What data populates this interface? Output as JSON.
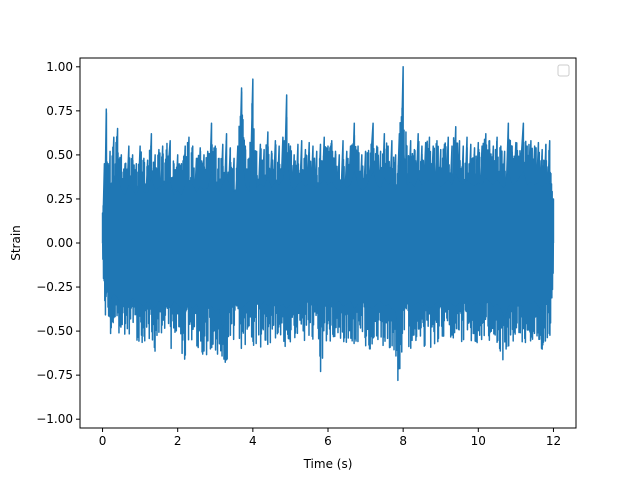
{
  "chart_data": {
    "type": "line",
    "title": "",
    "xlabel": "Time (s)",
    "ylabel": "Strain",
    "xlim": [
      -0.6,
      12.6
    ],
    "ylim": [
      -1.05,
      1.05
    ],
    "xticks": [
      0,
      2,
      4,
      6,
      8,
      10,
      12
    ],
    "xtick_labels": [
      "0",
      "2",
      "4",
      "6",
      "8",
      "10",
      "12"
    ],
    "yticks": [
      -1.0,
      -0.75,
      -0.5,
      -0.25,
      0.0,
      0.25,
      0.5,
      0.75,
      1.0
    ],
    "ytick_labels": [
      "−1.00",
      "−0.75",
      "−0.50",
      "−0.25",
      "0.00",
      "0.25",
      "0.50",
      "0.75",
      "1.00"
    ],
    "grid": false,
    "legend": {
      "placement": "top-right",
      "entries": []
    },
    "series": [
      {
        "color": "#1f77b4",
        "x_start": 0,
        "x_end": 12,
        "envelope_max": [
          [
            0.0,
            0.17
          ],
          [
            0.05,
            0.45
          ],
          [
            0.1,
            0.76
          ],
          [
            0.15,
            0.45
          ],
          [
            0.2,
            0.52
          ],
          [
            0.3,
            0.6
          ],
          [
            0.4,
            0.65
          ],
          [
            0.5,
            0.5
          ],
          [
            0.6,
            0.45
          ],
          [
            0.7,
            0.55
          ],
          [
            0.8,
            0.5
          ],
          [
            0.9,
            0.45
          ],
          [
            1.0,
            0.55
          ],
          [
            1.1,
            0.48
          ],
          [
            1.2,
            0.47
          ],
          [
            1.3,
            0.62
          ],
          [
            1.4,
            0.5
          ],
          [
            1.5,
            0.53
          ],
          [
            1.6,
            0.55
          ],
          [
            1.8,
            0.58
          ],
          [
            1.9,
            0.45
          ],
          [
            2.0,
            0.5
          ],
          [
            2.1,
            0.45
          ],
          [
            2.2,
            0.55
          ],
          [
            2.3,
            0.6
          ],
          [
            2.4,
            0.55
          ],
          [
            2.5,
            0.48
          ],
          [
            2.6,
            0.54
          ],
          [
            2.7,
            0.5
          ],
          [
            2.8,
            0.52
          ],
          [
            2.9,
            0.68
          ],
          [
            3.0,
            0.55
          ],
          [
            3.1,
            0.48
          ],
          [
            3.2,
            0.56
          ],
          [
            3.3,
            0.62
          ],
          [
            3.4,
            0.54
          ],
          [
            3.5,
            0.48
          ],
          [
            3.6,
            0.55
          ],
          [
            3.7,
            0.88
          ],
          [
            3.8,
            0.55
          ],
          [
            3.9,
            0.48
          ],
          [
            4.0,
            0.93
          ],
          [
            4.1,
            0.52
          ],
          [
            4.2,
            0.56
          ],
          [
            4.3,
            0.53
          ],
          [
            4.4,
            0.63
          ],
          [
            4.5,
            0.52
          ],
          [
            4.6,
            0.58
          ],
          [
            4.7,
            0.55
          ],
          [
            4.8,
            0.6
          ],
          [
            4.9,
            0.84
          ],
          [
            5.0,
            0.55
          ],
          [
            5.1,
            0.5
          ],
          [
            5.2,
            0.56
          ],
          [
            5.3,
            0.58
          ],
          [
            5.4,
            0.53
          ],
          [
            5.5,
            0.57
          ],
          [
            5.6,
            0.55
          ],
          [
            5.7,
            0.52
          ],
          [
            5.8,
            0.56
          ],
          [
            5.9,
            0.6
          ],
          [
            6.0,
            0.55
          ],
          [
            6.1,
            0.58
          ],
          [
            6.2,
            0.52
          ],
          [
            6.3,
            0.5
          ],
          [
            6.4,
            0.58
          ],
          [
            6.5,
            0.52
          ],
          [
            6.6,
            0.55
          ],
          [
            6.7,
            0.68
          ],
          [
            6.8,
            0.55
          ],
          [
            6.9,
            0.5
          ],
          [
            7.0,
            0.52
          ],
          [
            7.2,
            0.68
          ],
          [
            7.3,
            0.55
          ],
          [
            7.4,
            0.52
          ],
          [
            7.5,
            0.62
          ],
          [
            7.6,
            0.55
          ],
          [
            7.7,
            0.58
          ],
          [
            7.8,
            0.5
          ],
          [
            7.9,
            0.62
          ],
          [
            8.0,
            1.0
          ],
          [
            8.1,
            0.55
          ],
          [
            8.2,
            0.58
          ],
          [
            8.3,
            0.53
          ],
          [
            8.4,
            0.62
          ],
          [
            8.5,
            0.55
          ],
          [
            8.6,
            0.57
          ],
          [
            8.7,
            0.6
          ],
          [
            8.8,
            0.55
          ],
          [
            8.9,
            0.58
          ],
          [
            9.0,
            0.53
          ],
          [
            9.1,
            0.56
          ],
          [
            9.2,
            0.6
          ],
          [
            9.3,
            0.55
          ],
          [
            9.4,
            0.66
          ],
          [
            9.5,
            0.58
          ],
          [
            9.6,
            0.55
          ],
          [
            9.7,
            0.6
          ],
          [
            9.8,
            0.56
          ],
          [
            9.9,
            0.54
          ],
          [
            10.0,
            0.57
          ],
          [
            10.1,
            0.55
          ],
          [
            10.2,
            0.62
          ],
          [
            10.3,
            0.58
          ],
          [
            10.4,
            0.55
          ],
          [
            10.5,
            0.6
          ],
          [
            10.6,
            0.55
          ],
          [
            10.7,
            0.52
          ],
          [
            10.8,
            0.68
          ],
          [
            10.9,
            0.55
          ],
          [
            11.0,
            0.57
          ],
          [
            11.2,
            0.68
          ],
          [
            11.3,
            0.55
          ],
          [
            11.4,
            0.58
          ],
          [
            11.5,
            0.55
          ],
          [
            11.6,
            0.57
          ],
          [
            11.7,
            0.53
          ],
          [
            11.8,
            0.56
          ],
          [
            11.9,
            0.58
          ],
          [
            12.0,
            0.25
          ]
        ],
        "envelope_min": [
          [
            0.0,
            -0.1
          ],
          [
            0.05,
            -0.3
          ],
          [
            0.1,
            -0.5
          ],
          [
            0.15,
            -0.42
          ],
          [
            0.2,
            -0.55
          ],
          [
            0.3,
            -0.48
          ],
          [
            0.4,
            -0.52
          ],
          [
            0.5,
            -0.6
          ],
          [
            0.6,
            -0.55
          ],
          [
            0.7,
            -0.58
          ],
          [
            0.8,
            -0.52
          ],
          [
            0.9,
            -0.55
          ],
          [
            1.0,
            -0.57
          ],
          [
            1.1,
            -0.6
          ],
          [
            1.2,
            -0.55
          ],
          [
            1.3,
            -0.58
          ],
          [
            1.4,
            -0.62
          ],
          [
            1.5,
            -0.55
          ],
          [
            1.6,
            -0.58
          ],
          [
            1.8,
            -0.62
          ],
          [
            1.9,
            -0.55
          ],
          [
            2.0,
            -0.58
          ],
          [
            2.1,
            -0.62
          ],
          [
            2.2,
            -0.68
          ],
          [
            2.3,
            -0.58
          ],
          [
            2.4,
            -0.62
          ],
          [
            2.5,
            -0.58
          ],
          [
            2.6,
            -0.65
          ],
          [
            2.7,
            -0.72
          ],
          [
            2.8,
            -0.62
          ],
          [
            2.9,
            -0.6
          ],
          [
            3.0,
            -0.65
          ],
          [
            3.1,
            -0.62
          ],
          [
            3.2,
            -0.82
          ],
          [
            3.3,
            -0.68
          ],
          [
            3.4,
            -0.62
          ],
          [
            3.5,
            -0.58
          ],
          [
            3.6,
            -0.6
          ],
          [
            3.7,
            -0.62
          ],
          [
            3.8,
            -0.58
          ],
          [
            3.9,
            -0.55
          ],
          [
            4.0,
            -0.62
          ],
          [
            4.1,
            -0.58
          ],
          [
            4.2,
            -0.6
          ],
          [
            4.3,
            -0.55
          ],
          [
            4.4,
            -0.6
          ],
          [
            4.5,
            -0.55
          ],
          [
            4.6,
            -0.58
          ],
          [
            4.7,
            -0.6
          ],
          [
            4.8,
            -0.58
          ],
          [
            4.9,
            -0.62
          ],
          [
            5.0,
            -0.58
          ],
          [
            5.1,
            -0.55
          ],
          [
            5.2,
            -0.58
          ],
          [
            5.3,
            -0.6
          ],
          [
            5.4,
            -0.55
          ],
          [
            5.5,
            -0.58
          ],
          [
            5.6,
            -0.6
          ],
          [
            5.7,
            -0.56
          ],
          [
            5.8,
            -0.8
          ],
          [
            5.9,
            -0.58
          ],
          [
            6.0,
            -0.6
          ],
          [
            6.1,
            -0.56
          ],
          [
            6.2,
            -0.58
          ],
          [
            6.3,
            -0.55
          ],
          [
            6.4,
            -0.6
          ],
          [
            6.5,
            -0.58
          ],
          [
            6.6,
            -0.55
          ],
          [
            6.7,
            -0.62
          ],
          [
            6.8,
            -0.58
          ],
          [
            6.9,
            -0.55
          ],
          [
            7.0,
            -0.6
          ],
          [
            7.2,
            -0.62
          ],
          [
            7.3,
            -0.58
          ],
          [
            7.4,
            -0.55
          ],
          [
            7.5,
            -0.6
          ],
          [
            7.6,
            -0.58
          ],
          [
            7.7,
            -0.62
          ],
          [
            7.8,
            -0.65
          ],
          [
            7.9,
            -0.94
          ],
          [
            8.0,
            -0.62
          ],
          [
            8.1,
            -0.58
          ],
          [
            8.2,
            -0.6
          ],
          [
            8.3,
            -0.58
          ],
          [
            8.4,
            -0.56
          ],
          [
            8.5,
            -0.6
          ],
          [
            8.6,
            -0.58
          ],
          [
            8.7,
            -0.62
          ],
          [
            8.8,
            -0.6
          ],
          [
            8.9,
            -0.56
          ],
          [
            9.0,
            -0.58
          ],
          [
            9.1,
            -0.6
          ],
          [
            9.2,
            -0.55
          ],
          [
            9.3,
            -0.58
          ],
          [
            9.4,
            -0.6
          ],
          [
            9.5,
            -0.56
          ],
          [
            9.6,
            -0.58
          ],
          [
            9.7,
            -0.55
          ],
          [
            9.8,
            -0.6
          ],
          [
            9.9,
            -0.58
          ],
          [
            10.0,
            -0.56
          ],
          [
            10.1,
            -0.6
          ],
          [
            10.2,
            -0.58
          ],
          [
            10.3,
            -0.55
          ],
          [
            10.4,
            -0.6
          ],
          [
            10.5,
            -0.58
          ],
          [
            10.6,
            -0.62
          ],
          [
            10.7,
            -0.72
          ],
          [
            10.8,
            -0.6
          ],
          [
            10.9,
            -0.56
          ],
          [
            11.0,
            -0.58
          ],
          [
            11.2,
            -0.6
          ],
          [
            11.3,
            -0.56
          ],
          [
            11.4,
            -0.58
          ],
          [
            11.5,
            -0.55
          ],
          [
            11.6,
            -0.6
          ],
          [
            11.7,
            -0.66
          ],
          [
            11.8,
            -0.58
          ],
          [
            11.9,
            -0.56
          ],
          [
            12.0,
            -0.2
          ]
        ]
      }
    ]
  },
  "colors": {
    "series": "#1f77b4",
    "axes": "#000000",
    "legend_border": "#cccccc",
    "background": "#ffffff"
  }
}
